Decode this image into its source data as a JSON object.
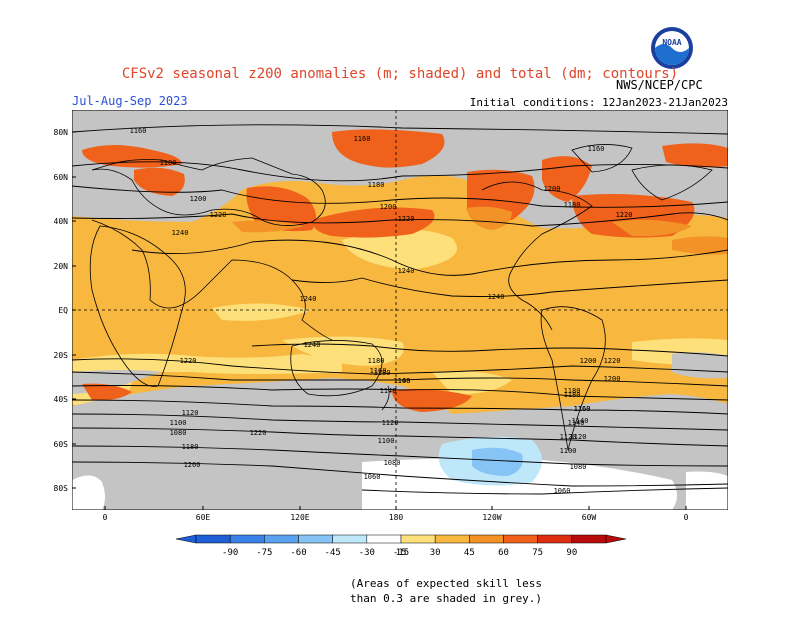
{
  "title": "CFSv2 seasonal z200 anomalies (m; shaded) and total (dm; contours)",
  "season": "Jul-Aug-Sep 2023",
  "initial_conditions": "Initial conditions: 12Jan2023-21Jan2023",
  "organization": "NWS/NCEP/CPC",
  "logo_text": "NOAA",
  "footnote": [
    "(Areas of expected skill less",
    "than 0.3 are shaded in grey.)"
  ],
  "lat_labels": [
    "80N",
    "60N",
    "40N",
    "20N",
    "EQ",
    "20S",
    "40S",
    "60S",
    "80S"
  ],
  "lon_labels": [
    "0",
    "60E",
    "120E",
    "180",
    "120W",
    "60W",
    "0"
  ],
  "contour_labels": [
    "1160",
    "1180",
    "1160",
    "1160",
    "1180",
    "1200",
    "1220",
    "1240",
    "1200",
    "1180",
    "1200",
    "1220",
    "1220",
    "1240",
    "1240",
    "1240",
    "1240",
    "1220",
    "1200",
    "1180",
    "1160",
    "1140",
    "1120",
    "1100",
    "1080",
    "1180",
    "1200",
    "1220",
    "1180",
    "1160",
    "1140",
    "1120",
    "1100",
    "1080",
    "1180",
    "1160",
    "1140",
    "1120",
    "1100",
    "1080",
    "1060",
    "1220",
    "1200",
    "1180",
    "1160",
    "1140",
    "1120",
    "1060"
  ],
  "colorbar": {
    "ticks": [
      "-90",
      "-75",
      "-60",
      "-45",
      "-30",
      "-15",
      "15",
      "30",
      "45",
      "60",
      "75",
      "90"
    ],
    "colors": [
      "#1f5fd6",
      "#3b82e8",
      "#5aa2f0",
      "#86c4f5",
      "#bfe7fa",
      "#ffffff",
      "#fde07a",
      "#f8b73e",
      "#f39226",
      "#f0611c",
      "#dc2e0f",
      "#b80c0c"
    ]
  },
  "colors": {
    "title": "#e0452a",
    "season": "#2a4fd6",
    "grey_mask": "#c4c4c4",
    "anomaly_15_30": "#fde07a",
    "anomaly_30_45": "#f8b73e",
    "anomaly_45_60": "#f39226",
    "anomaly_60_75": "#f0611c",
    "negative_15_30": "#bfe7fa",
    "negative_30_45": "#86c4f5"
  }
}
